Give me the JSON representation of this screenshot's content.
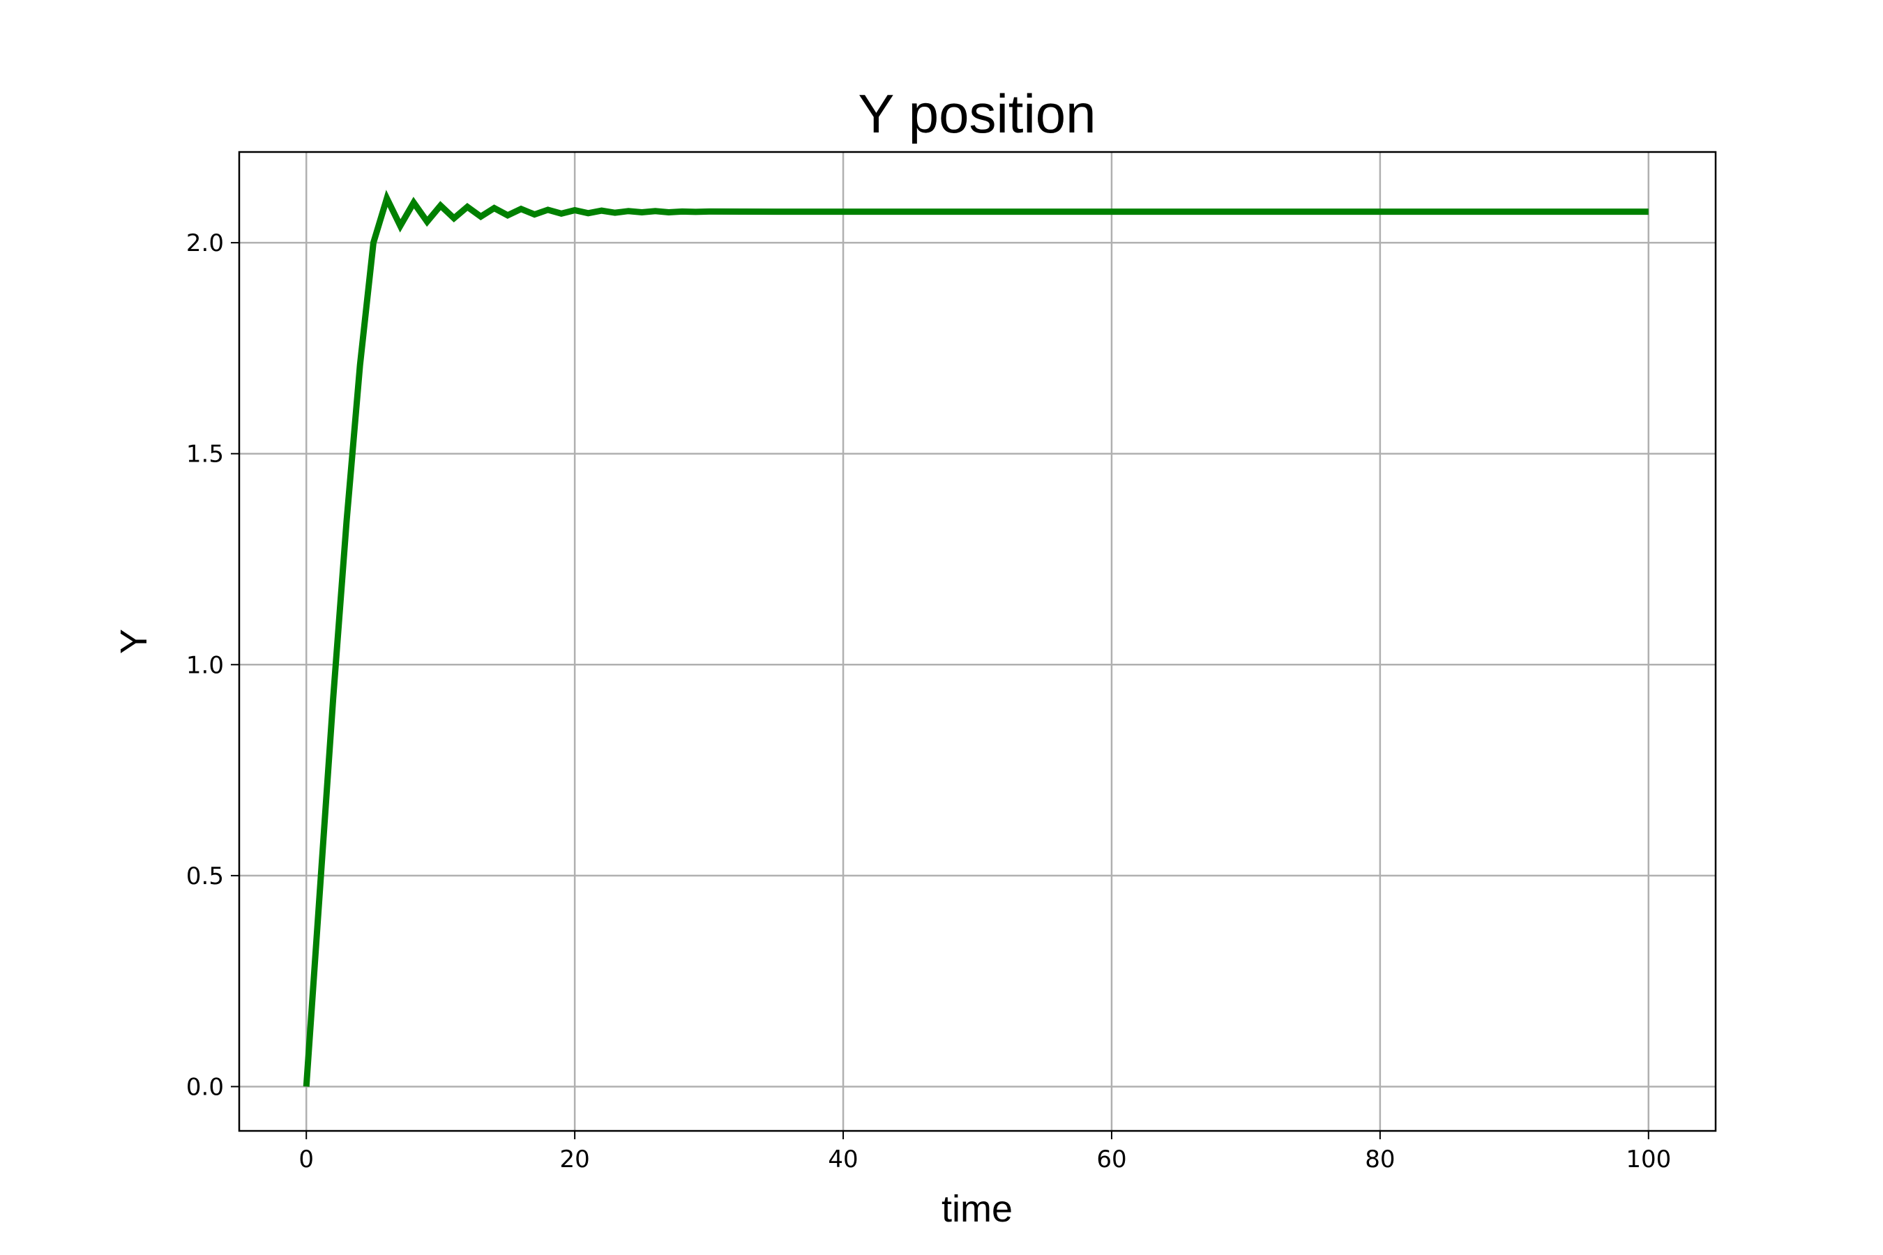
{
  "chart_data": {
    "type": "line",
    "title": "Y position",
    "xlabel": "time",
    "ylabel": "Y",
    "xlim": [
      -5,
      105
    ],
    "ylim": [
      -0.105,
      2.215
    ],
    "xticks": [
      0,
      20,
      40,
      60,
      80,
      100
    ],
    "xtick_labels": [
      "0",
      "20",
      "40",
      "60",
      "80",
      "100"
    ],
    "yticks": [
      0.0,
      0.5,
      1.0,
      1.5,
      2.0
    ],
    "ytick_labels": [
      "0.0",
      "0.5",
      "1.0",
      "1.5",
      "2.0"
    ],
    "grid": true,
    "series": [
      {
        "color": "#008000",
        "x": [
          0,
          1,
          2,
          3,
          4,
          5,
          6,
          7,
          8,
          9,
          10,
          11,
          12,
          13,
          14,
          15,
          16,
          17,
          18,
          19,
          20,
          21,
          22,
          23,
          24,
          25,
          26,
          27,
          28,
          29,
          30,
          35,
          40,
          50,
          60,
          70,
          80,
          90,
          100
        ],
        "y": [
          0.0,
          0.46,
          0.92,
          1.34,
          1.71,
          2.0,
          2.105,
          2.04,
          2.095,
          2.05,
          2.088,
          2.058,
          2.085,
          2.062,
          2.082,
          2.065,
          2.08,
          2.067,
          2.078,
          2.069,
          2.077,
          2.07,
          2.076,
          2.071,
          2.075,
          2.072,
          2.075,
          2.072,
          2.074,
          2.073,
          2.074,
          2.0735,
          2.0735,
          2.0735,
          2.0735,
          2.0735,
          2.0735,
          2.0735,
          2.0735
        ]
      }
    ]
  }
}
